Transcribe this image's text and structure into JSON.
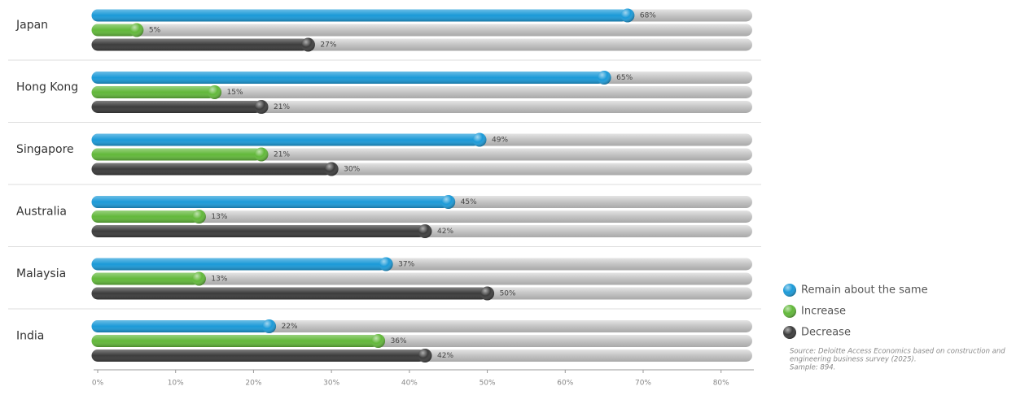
{
  "chart_data": {
    "type": "bar",
    "orientation": "horizontal",
    "categories": [
      "Japan",
      "Hong Kong",
      "Singapore",
      "Australia",
      "Malaysia",
      "India"
    ],
    "series": [
      {
        "name": "Remain about the same",
        "color": "#1b9ad8",
        "values": [
          68,
          65,
          49,
          45,
          37,
          22
        ],
        "value_labels": [
          "68%",
          "65%",
          "49%",
          "45%",
          "37%",
          "22%"
        ]
      },
      {
        "name": "Increase",
        "color": "#62b83a",
        "values": [
          5,
          15,
          21,
          13,
          13,
          36
        ],
        "value_labels": [
          "5%",
          "15%",
          "21%",
          "13%",
          "13%",
          "36%"
        ]
      },
      {
        "name": "Decrease",
        "color": "#3c3c3c",
        "values": [
          27,
          21,
          30,
          42,
          50,
          42
        ],
        "value_labels": [
          "27%",
          "21%",
          "30%",
          "42%",
          "50%",
          "42%"
        ]
      }
    ],
    "xlim": [
      0,
      84
    ],
    "xticks": [
      {
        "value": 0,
        "label": "0%"
      },
      {
        "value": 10,
        "label": "10%"
      },
      {
        "value": 20,
        "label": "20%"
      },
      {
        "value": 30,
        "label": "30%"
      },
      {
        "value": 40,
        "label": "40%"
      },
      {
        "value": 50,
        "label": "50%"
      },
      {
        "value": 60,
        "label": "60%"
      },
      {
        "value": 70,
        "label": "70%"
      },
      {
        "value": 80,
        "label": "80%"
      }
    ],
    "grid": false,
    "legend": "bottom-right",
    "source": [
      "Source: Deloitte Access Economics based on construction and",
      "engineering business survey (2025).",
      "Sample: 894."
    ]
  }
}
